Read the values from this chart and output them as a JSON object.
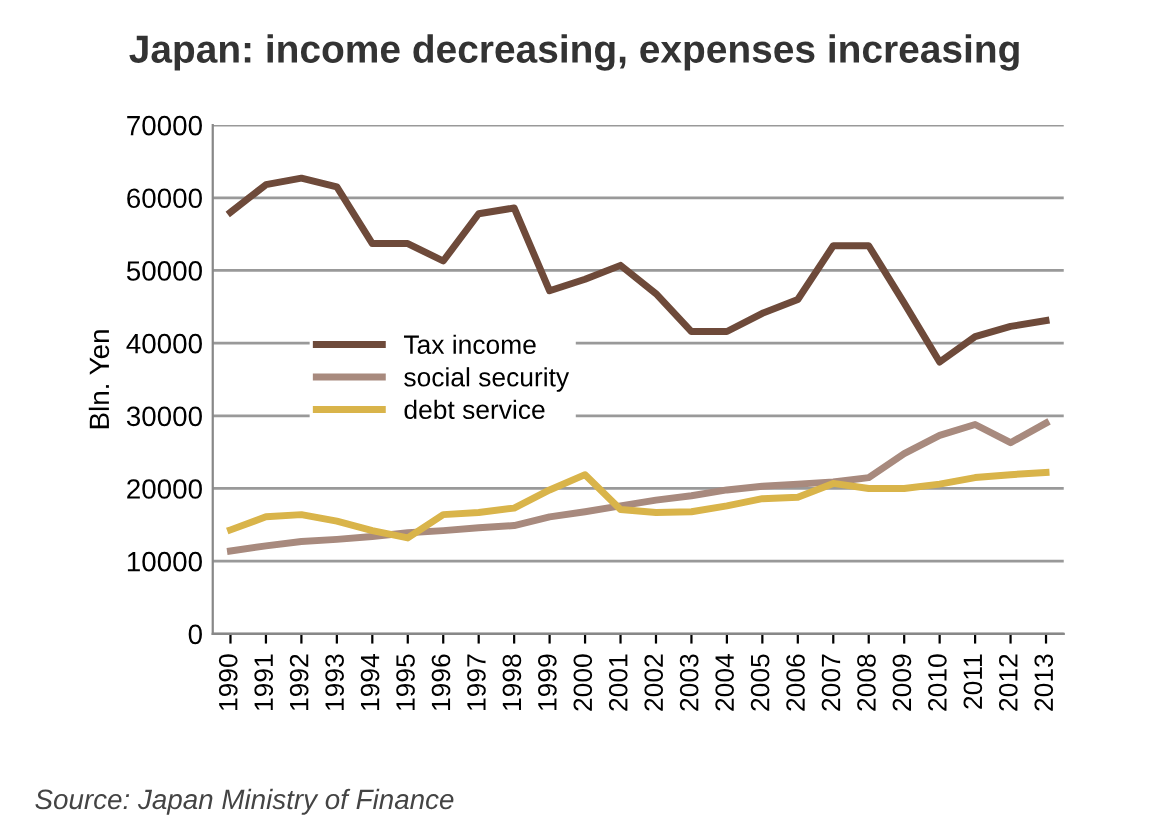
{
  "chart_data": {
    "type": "line",
    "title": "Japan: income decreasing, expenses increasing",
    "ylabel": "Bln. Yen",
    "categories": [
      "1990",
      "1991",
      "1992",
      "1993",
      "1994",
      "1995",
      "1996",
      "1997",
      "1998",
      "1999",
      "2000",
      "2001",
      "2002",
      "2003",
      "2004",
      "2005",
      "2006",
      "2007",
      "2008",
      "2009",
      "2010",
      "2011",
      "2012",
      "2013"
    ],
    "series": [
      {
        "name": "Tax income",
        "color": "#6e4a3a",
        "values": [
          58000,
          61800,
          62700,
          61500,
          53700,
          53700,
          51300,
          57800,
          58600,
          47200,
          48800,
          50700,
          46800,
          41600,
          41600,
          44100,
          46000,
          53400,
          53400,
          45500,
          37400,
          40900,
          42300,
          43100
        ]
      },
      {
        "name": "social security",
        "color": "#a88a7e",
        "values": [
          11400,
          12100,
          12700,
          13000,
          13400,
          13900,
          14200,
          14600,
          14900,
          16100,
          16800,
          17600,
          18400,
          19000,
          19800,
          20300,
          20600,
          20900,
          21500,
          24800,
          27300,
          28800,
          26300,
          29000
        ]
      },
      {
        "name": "debt service",
        "color": "#d9b44a",
        "values": [
          14300,
          16100,
          16400,
          15500,
          14200,
          13200,
          16400,
          16700,
          17300,
          19800,
          21900,
          17100,
          16700,
          16800,
          17600,
          18600,
          18800,
          20700,
          20000,
          20000,
          20600,
          21500,
          21900,
          22200
        ]
      }
    ],
    "ylim": [
      0,
      70000
    ],
    "yticks": [
      0,
      10000,
      20000,
      30000,
      40000,
      50000,
      60000,
      70000
    ],
    "grid": "y",
    "legend": "center",
    "marker": "none",
    "line_style": "solid",
    "annotations": [
      "Source: Japan Ministry of Finance"
    ]
  }
}
